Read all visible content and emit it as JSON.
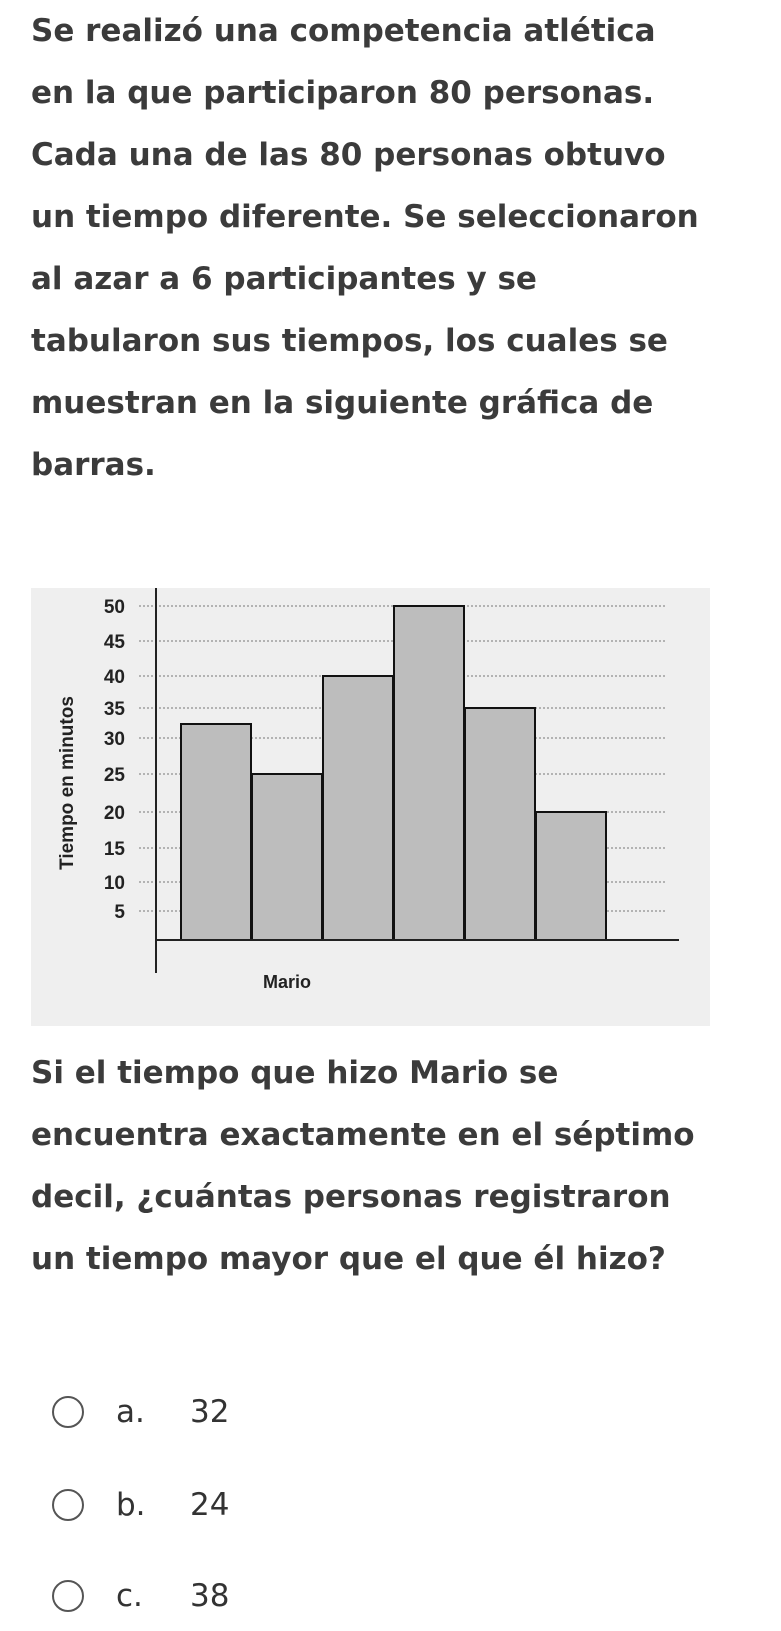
{
  "intro_text": "Se realizó una competencia atlética\nen la que participaron 80 personas.\nCada una de las 80 personas obtuvo\nun tiempo diferente. Se seleccionaron\nal azar a 6 participantes y se\ntabularon sus tiempos, los cuales se\nmuestran en la siguiente gráfica de\nbarras.",
  "question_text": "Si el tiempo que hizo Mario se\nencuentra exactamente en el séptimo\ndecil, ¿cuántas personas registraron\nun tiempo mayor que el que él hizo?",
  "options": [
    {
      "letter": "a.",
      "value": "32"
    },
    {
      "letter": "b.",
      "value": "24"
    },
    {
      "letter": "c.",
      "value": "38"
    }
  ],
  "chart_data": {
    "type": "bar",
    "ylabel": "Tiempo en minutos",
    "xlabel": "",
    "categories": [
      "",
      "",
      "",
      "",
      "",
      ""
    ],
    "category_note": "Mario",
    "values": [
      32,
      25,
      40,
      50,
      35,
      20
    ],
    "yticks": [
      5,
      10,
      15,
      20,
      25,
      30,
      35,
      40,
      45,
      50
    ],
    "ylim": [
      0,
      50
    ],
    "grid": true,
    "bar_color": "#bdbdbd",
    "grid_color": "#777777"
  }
}
